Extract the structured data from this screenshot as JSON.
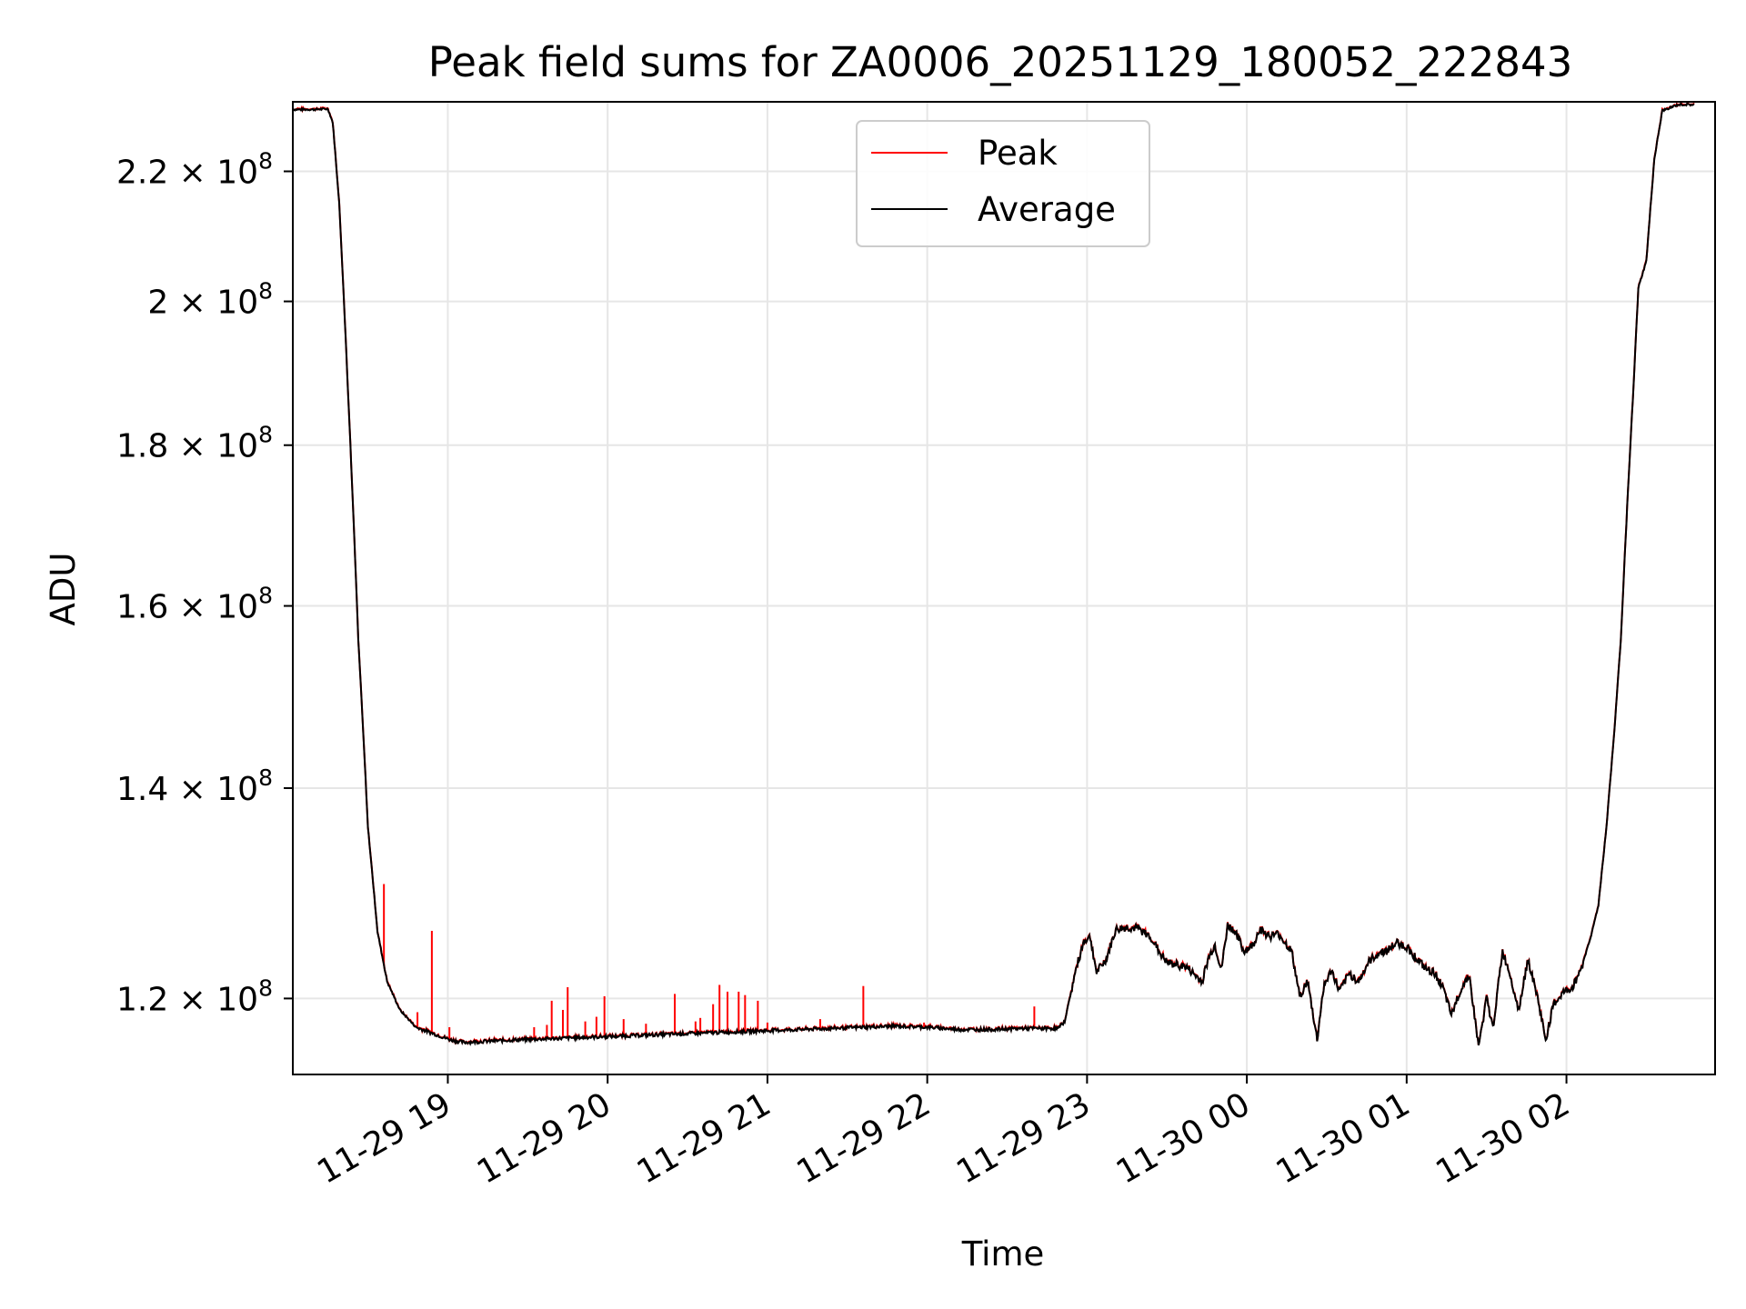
{
  "chart_data": {
    "type": "line",
    "title": "Peak field sums for ZA0006_20251129_180052_222843",
    "xlabel": "Time",
    "ylabel": "ADU",
    "yscale": "log",
    "grid": true,
    "legend_position": "top-center",
    "colors": {
      "Peak": "#ff0000",
      "Average": "#000000",
      "grid": "#e6e6e6"
    },
    "xlim": [
      18.03,
      26.93
    ],
    "ylim": [
      113500000,
      231500000
    ],
    "x_ticks": [
      19,
      20,
      21,
      22,
      23,
      24,
      25,
      26
    ],
    "x_tick_labels": [
      "11-29 19",
      "11-29 20",
      "11-29 21",
      "11-29 22",
      "11-29 23",
      "11-30 00",
      "11-30 01",
      "11-30 02"
    ],
    "y_ticks": [
      120000000,
      140000000,
      160000000,
      180000000,
      200000000,
      220000000
    ],
    "y_tick_labels": [
      {
        "mantissa": "1.2",
        "times": "×",
        "base": "10",
        "exp": "8"
      },
      {
        "mantissa": "1.4",
        "times": "×",
        "base": "10",
        "exp": "8"
      },
      {
        "mantissa": "1.6",
        "times": "×",
        "base": "10",
        "exp": "8"
      },
      {
        "mantissa": "1.8",
        "times": "×",
        "base": "10",
        "exp": "8"
      },
      {
        "mantissa": "2",
        "times": "×",
        "base": "10",
        "exp": "8"
      },
      {
        "mantissa": "2.2",
        "times": "×",
        "base": "10",
        "exp": "8"
      }
    ],
    "series": [
      {
        "name": "Peak"
      },
      {
        "name": "Average"
      }
    ],
    "average_points": [
      [
        18.0,
        230200000
      ],
      [
        18.15,
        230200000
      ],
      [
        18.25,
        230300000
      ],
      [
        18.28,
        228000000
      ],
      [
        18.32,
        215000000
      ],
      [
        18.38,
        185000000
      ],
      [
        18.44,
        156000000
      ],
      [
        18.5,
        136000000
      ],
      [
        18.56,
        126000000
      ],
      [
        18.62,
        121500000
      ],
      [
        18.7,
        119000000
      ],
      [
        18.8,
        117500000
      ],
      [
        18.92,
        116900000
      ],
      [
        19.02,
        116400000
      ],
      [
        19.1,
        116200000
      ],
      [
        19.25,
        116300000
      ],
      [
        19.4,
        116400000
      ],
      [
        19.6,
        116500000
      ],
      [
        19.8,
        116600000
      ],
      [
        20.0,
        116700000
      ],
      [
        20.2,
        116800000
      ],
      [
        20.4,
        116900000
      ],
      [
        20.6,
        117000000
      ],
      [
        20.8,
        117100000
      ],
      [
        21.0,
        117200000
      ],
      [
        21.2,
        117300000
      ],
      [
        21.4,
        117400000
      ],
      [
        21.6,
        117500000
      ],
      [
        21.8,
        117600000
      ],
      [
        22.0,
        117500000
      ],
      [
        22.2,
        117300000
      ],
      [
        22.4,
        117300000
      ],
      [
        22.6,
        117400000
      ],
      [
        22.82,
        117400000
      ],
      [
        22.86,
        118000000
      ],
      [
        22.93,
        122500000
      ],
      [
        22.98,
        125200000
      ],
      [
        23.02,
        125500000
      ],
      [
        23.06,
        122300000
      ],
      [
        23.12,
        123500000
      ],
      [
        23.18,
        126200000
      ],
      [
        23.25,
        126400000
      ],
      [
        23.32,
        126300000
      ],
      [
        23.4,
        125500000
      ],
      [
        23.45,
        124200000
      ],
      [
        23.5,
        123200000
      ],
      [
        23.56,
        123000000
      ],
      [
        23.62,
        122800000
      ],
      [
        23.68,
        122000000
      ],
      [
        23.72,
        121500000
      ],
      [
        23.76,
        123600000
      ],
      [
        23.8,
        124800000
      ],
      [
        23.84,
        122500000
      ],
      [
        23.88,
        126600000
      ],
      [
        23.93,
        126000000
      ],
      [
        23.98,
        124200000
      ],
      [
        24.04,
        124800000
      ],
      [
        24.08,
        126300000
      ],
      [
        24.14,
        125600000
      ],
      [
        24.2,
        125800000
      ],
      [
        24.28,
        124200000
      ],
      [
        24.33,
        120200000
      ],
      [
        24.38,
        121500000
      ],
      [
        24.44,
        116400000
      ],
      [
        24.48,
        121000000
      ],
      [
        24.53,
        122500000
      ],
      [
        24.58,
        120600000
      ],
      [
        24.64,
        122200000
      ],
      [
        24.7,
        121500000
      ],
      [
        24.76,
        123200000
      ],
      [
        24.82,
        124000000
      ],
      [
        24.88,
        124300000
      ],
      [
        24.94,
        125000000
      ],
      [
        25.0,
        124600000
      ],
      [
        25.06,
        123600000
      ],
      [
        25.12,
        122600000
      ],
      [
        25.18,
        122200000
      ],
      [
        25.23,
        120800000
      ],
      [
        25.28,
        118500000
      ],
      [
        25.33,
        120500000
      ],
      [
        25.39,
        122200000
      ],
      [
        25.45,
        115800000
      ],
      [
        25.5,
        120000000
      ],
      [
        25.54,
        117400000
      ],
      [
        25.6,
        124200000
      ],
      [
        25.65,
        122000000
      ],
      [
        25.7,
        119000000
      ],
      [
        25.76,
        123500000
      ],
      [
        25.82,
        120000000
      ],
      [
        25.87,
        116400000
      ],
      [
        25.92,
        119500000
      ],
      [
        25.98,
        120500000
      ],
      [
        26.04,
        121000000
      ],
      [
        26.1,
        123000000
      ],
      [
        26.16,
        126000000
      ],
      [
        26.2,
        128500000
      ],
      [
        26.25,
        136000000
      ],
      [
        26.3,
        146000000
      ],
      [
        26.34,
        156000000
      ],
      [
        26.38,
        172000000
      ],
      [
        26.42,
        188000000
      ],
      [
        26.45,
        202000000
      ],
      [
        26.5,
        206000000
      ],
      [
        26.55,
        222000000
      ],
      [
        26.6,
        230000000
      ],
      [
        26.7,
        231000000
      ],
      [
        26.93,
        231000000
      ]
    ],
    "peak_spikes": [
      [
        18.6,
        130500000
      ],
      [
        18.81,
        118800000
      ],
      [
        18.9,
        126100000
      ],
      [
        19.01,
        117500000
      ],
      [
        19.54,
        117500000
      ],
      [
        19.62,
        117700000
      ],
      [
        19.65,
        119800000
      ],
      [
        19.72,
        119000000
      ],
      [
        19.75,
        121000000
      ],
      [
        19.86,
        118000000
      ],
      [
        19.93,
        118400000
      ],
      [
        19.98,
        120200000
      ],
      [
        20.1,
        118200000
      ],
      [
        20.24,
        117800000
      ],
      [
        20.42,
        120400000
      ],
      [
        20.55,
        118000000
      ],
      [
        20.58,
        118300000
      ],
      [
        20.66,
        119500000
      ],
      [
        20.7,
        121200000
      ],
      [
        20.75,
        120600000
      ],
      [
        20.82,
        120600000
      ],
      [
        20.86,
        120300000
      ],
      [
        20.94,
        119800000
      ],
      [
        21.0,
        117900000
      ],
      [
        21.33,
        118200000
      ],
      [
        21.6,
        121100000
      ],
      [
        21.98,
        117900000
      ],
      [
        22.67,
        119300000
      ]
    ]
  }
}
